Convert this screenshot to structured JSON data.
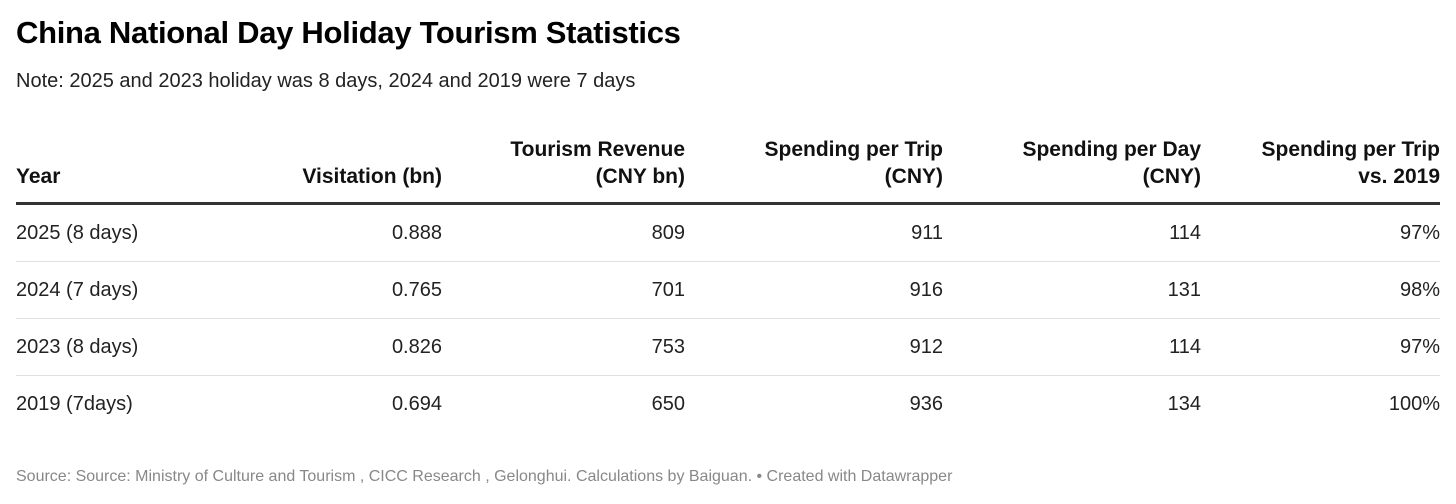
{
  "title": "China National Day Holiday Tourism Statistics",
  "subtitle": "Note: 2025 and 2023 holiday was 8 days, 2024 and 2019 were 7 days",
  "chart_data": {
    "type": "table",
    "columns": [
      "Year",
      "Visitation (bn)",
      "Tourism Revenue\n(CNY bn)",
      "Spending per Trip\n(CNY)",
      "Spending per Day\n(CNY)",
      "Spending per Trip\nvs. 2019"
    ],
    "rows": [
      [
        "2025 (8 days)",
        "0.888",
        "809",
        "911",
        "114",
        "97%"
      ],
      [
        "2024 (7 days)",
        "0.765",
        "701",
        "916",
        "131",
        "98%"
      ],
      [
        "2023 (8 days)",
        "0.826",
        "753",
        "912",
        "114",
        "97%"
      ],
      [
        "2019 (7days)",
        "0.694",
        "650",
        "936",
        "134",
        "100%"
      ]
    ]
  },
  "footer": {
    "source": "Source: Source: Ministry of Culture and Tourism , CICC Research , Gelonghui. Calculations by Baiguan. • Created with Datawrapper"
  }
}
